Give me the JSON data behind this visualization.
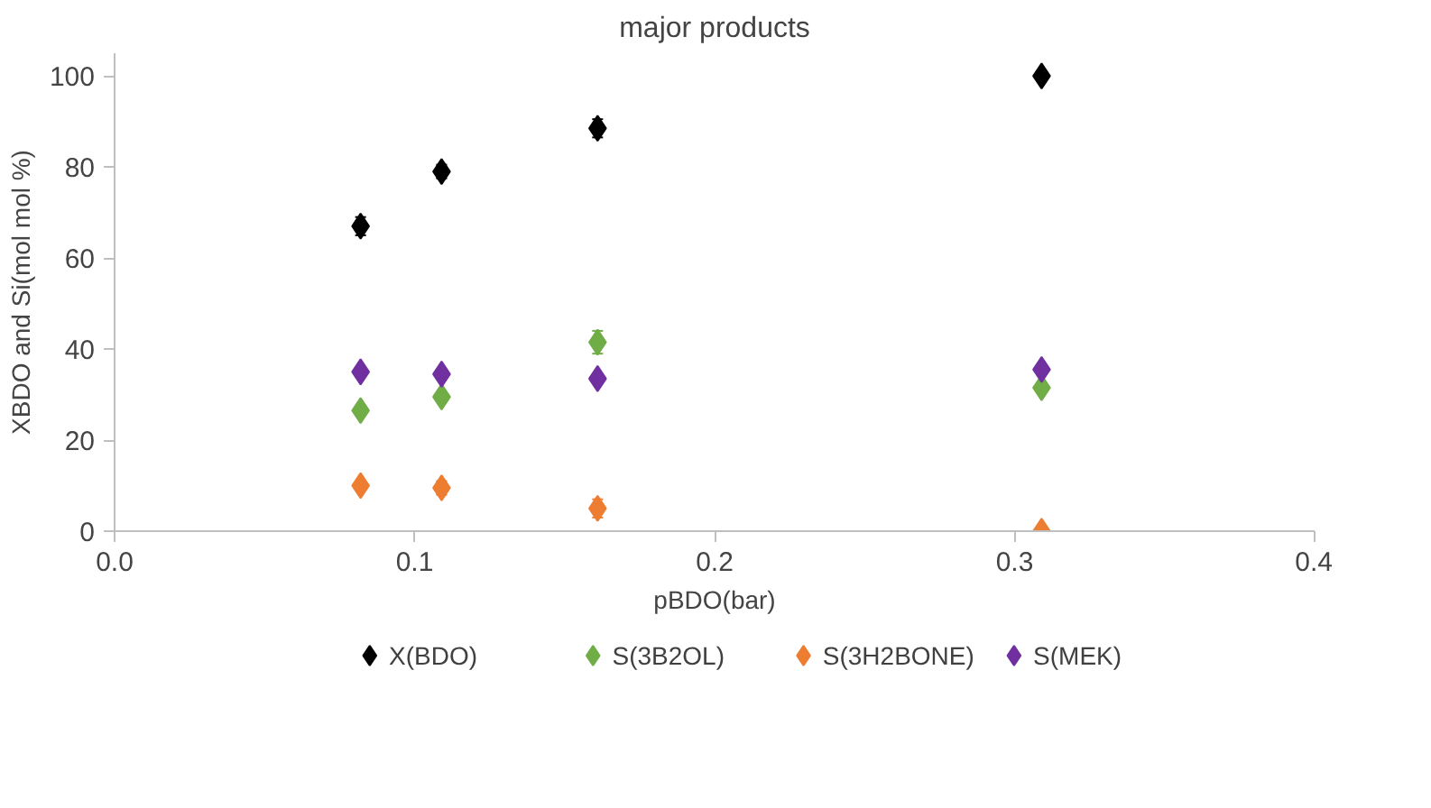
{
  "chart_data": {
    "type": "scatter",
    "title": "major products",
    "xlabel": "pBDO(bar)",
    "ylabel": "XBDO and Si(mol mol %)",
    "x": [
      0.082,
      0.109,
      0.161,
      0.309
    ],
    "series": [
      {
        "name": "X(BDO)",
        "color": "#000000",
        "values": [
          67,
          79,
          88.5,
          100
        ],
        "errors": [
          2,
          1.5,
          2,
          1
        ]
      },
      {
        "name": "S(3B2OL)",
        "color": "#70ad47",
        "values": [
          26.5,
          29.5,
          41.5,
          31.5
        ],
        "errors": [
          1,
          1,
          2.5,
          1
        ]
      },
      {
        "name": "S(3H2BONE)",
        "color": "#ed7d31",
        "values": [
          10,
          9.5,
          5,
          0
        ],
        "errors": [
          1,
          1.5,
          2,
          0.5
        ]
      },
      {
        "name": "S(MEK)",
        "color": "#7030a0",
        "values": [
          35,
          34.5,
          33.5,
          35.5
        ],
        "errors": [
          1,
          1,
          1,
          1
        ]
      }
    ],
    "xlim": [
      0,
      0.4
    ],
    "xticks": [
      {
        "value": 0,
        "label": "0.0"
      },
      0.1,
      0.2,
      0.3,
      0.4
    ],
    "ylim": [
      0,
      105
    ],
    "yticks": [
      0,
      20,
      40,
      60,
      80,
      100
    ],
    "grid": false,
    "legend": "bottom",
    "marker": "diamond"
  }
}
